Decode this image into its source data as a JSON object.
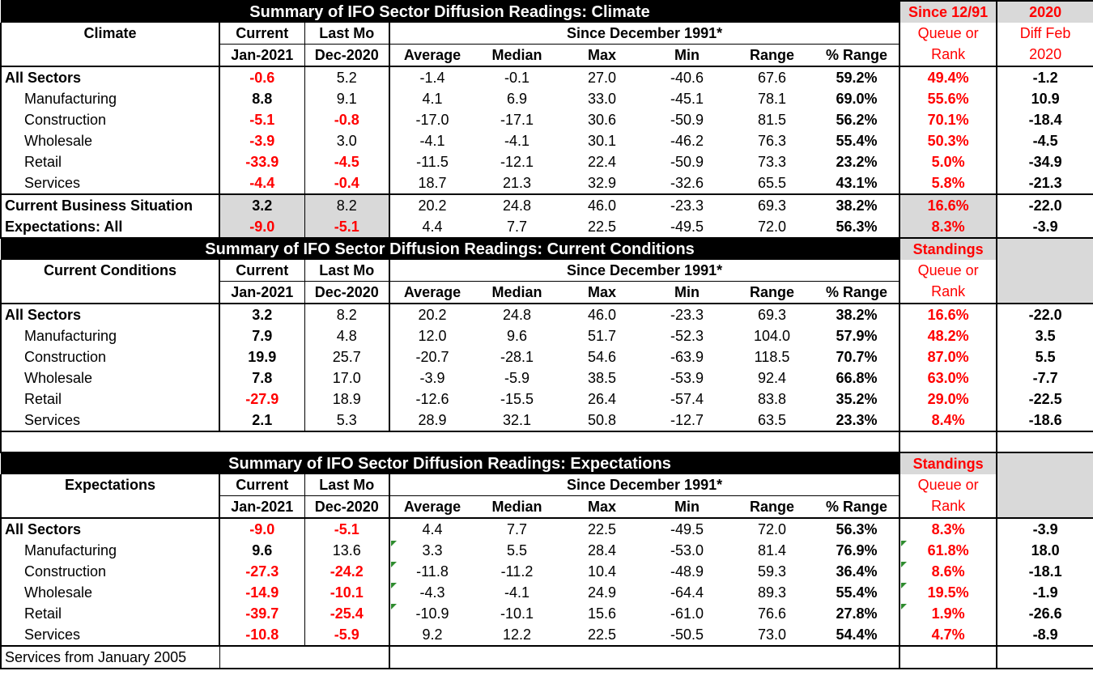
{
  "climate": {
    "title": "Summary of IFO Sector Diffusion Readings: Climate",
    "since_label": "Since 12/91",
    "year_label": "2020",
    "row_header": "Climate",
    "current_label": "Current",
    "lastmo_label": "Last Mo",
    "since_dec": "Since December 1991*",
    "queue_label": "Queue or",
    "rank_label": "Rank",
    "diff_label": "Diff Feb",
    "diff_year": "2020",
    "current_date": "Jan-2021",
    "lastmo_date": "Dec-2020",
    "col_average": "Average",
    "col_median": "Median",
    "col_max": "Max",
    "col_min": "Min",
    "col_range": "Range",
    "col_pctrange": "% Range",
    "rows": [
      {
        "name": "All Sectors",
        "current": "-0.6",
        "lastmo": "5.2",
        "average": "-1.4",
        "median": "-0.1",
        "max": "27.0",
        "min": "-40.6",
        "range": "67.6",
        "pct": "59.2%",
        "rank": "49.4%",
        "diff": "-1.2"
      },
      {
        "name": "Manufacturing",
        "current": "8.8",
        "lastmo": "9.1",
        "average": "4.1",
        "median": "6.9",
        "max": "33.0",
        "min": "-45.1",
        "range": "78.1",
        "pct": "69.0%",
        "rank": "55.6%",
        "diff": "10.9"
      },
      {
        "name": "Construction",
        "current": "-5.1",
        "lastmo": "-0.8",
        "average": "-17.0",
        "median": "-17.1",
        "max": "30.6",
        "min": "-50.9",
        "range": "81.5",
        "pct": "56.2%",
        "rank": "70.1%",
        "diff": "-18.4"
      },
      {
        "name": "Wholesale",
        "current": "-3.9",
        "lastmo": "3.0",
        "average": "-4.1",
        "median": "-4.1",
        "max": "30.1",
        "min": "-46.2",
        "range": "76.3",
        "pct": "55.4%",
        "rank": "50.3%",
        "diff": "-4.5"
      },
      {
        "name": "Retail",
        "current": "-33.9",
        "lastmo": "-4.5",
        "average": "-11.5",
        "median": "-12.1",
        "max": "22.4",
        "min": "-50.9",
        "range": "73.3",
        "pct": "23.2%",
        "rank": "5.0%",
        "diff": "-34.9"
      },
      {
        "name": "Services",
        "current": "-4.4",
        "lastmo": "-0.4",
        "average": "18.7",
        "median": "21.3",
        "max": "32.9",
        "min": "-32.6",
        "range": "65.5",
        "pct": "43.1%",
        "rank": "5.8%",
        "diff": "-21.3"
      },
      {
        "name": "Current Business Situation",
        "current": "3.2",
        "lastmo": "8.2",
        "average": "20.2",
        "median": "24.8",
        "max": "46.0",
        "min": "-23.3",
        "range": "69.3",
        "pct": "38.2%",
        "rank": "16.6%",
        "diff": "-22.0"
      },
      {
        "name": "Expectations: All",
        "current": "-9.0",
        "lastmo": "-5.1",
        "average": "4.4",
        "median": "7.7",
        "max": "22.5",
        "min": "-49.5",
        "range": "72.0",
        "pct": "56.3%",
        "rank": "8.3%",
        "diff": "-3.9"
      }
    ]
  },
  "conditions": {
    "title": "Summary of IFO Sector Diffusion Readings: Current Conditions",
    "standings_label": "Standings",
    "row_header": "Current Conditions",
    "current_label": "Current",
    "lastmo_label": "Last Mo",
    "since_dec": "Since December 1991*",
    "queue_label": "Queue or",
    "rank_label": "Rank",
    "current_date": "Jan-2021",
    "lastmo_date": "Dec-2020",
    "col_average": "Average",
    "col_median": "Median",
    "col_max": "Max",
    "col_min": "Min",
    "col_range": "Range",
    "col_pctrange": "% Range",
    "rows": [
      {
        "name": "All Sectors",
        "current": "3.2",
        "lastmo": "8.2",
        "average": "20.2",
        "median": "24.8",
        "max": "46.0",
        "min": "-23.3",
        "range": "69.3",
        "pct": "38.2%",
        "rank": "16.6%",
        "diff": "-22.0"
      },
      {
        "name": "Manufacturing",
        "current": "7.9",
        "lastmo": "4.8",
        "average": "12.0",
        "median": "9.6",
        "max": "51.7",
        "min": "-52.3",
        "range": "104.0",
        "pct": "57.9%",
        "rank": "48.2%",
        "diff": "3.5"
      },
      {
        "name": "Construction",
        "current": "19.9",
        "lastmo": "25.7",
        "average": "-20.7",
        "median": "-28.1",
        "max": "54.6",
        "min": "-63.9",
        "range": "118.5",
        "pct": "70.7%",
        "rank": "87.0%",
        "diff": "5.5"
      },
      {
        "name": "Wholesale",
        "current": "7.8",
        "lastmo": "17.0",
        "average": "-3.9",
        "median": "-5.9",
        "max": "38.5",
        "min": "-53.9",
        "range": "92.4",
        "pct": "66.8%",
        "rank": "63.0%",
        "diff": "-7.7"
      },
      {
        "name": "Retail",
        "current": "-27.9",
        "lastmo": "18.9",
        "average": "-12.6",
        "median": "-15.5",
        "max": "26.4",
        "min": "-57.4",
        "range": "83.8",
        "pct": "35.2%",
        "rank": "29.0%",
        "diff": "-22.5"
      },
      {
        "name": "Services",
        "current": "2.1",
        "lastmo": "5.3",
        "average": "28.9",
        "median": "32.1",
        "max": "50.8",
        "min": "-12.7",
        "range": "63.5",
        "pct": "23.3%",
        "rank": "8.4%",
        "diff": "-18.6"
      }
    ]
  },
  "expectations": {
    "title": "Summary of IFO Sector Diffusion Readings: Expectations",
    "standings_label": "Standings",
    "row_header": "Expectations",
    "current_label": "Current",
    "lastmo_label": "Last Mo",
    "since_dec": "Since December 1991*",
    "queue_label": "Queue or",
    "rank_label": "Rank",
    "current_date": "Jan-2021",
    "lastmo_date": "Dec-2020",
    "col_average": "Average",
    "col_median": "Median",
    "col_max": "Max",
    "col_min": "Min",
    "col_range": "Range",
    "col_pctrange": "% Range",
    "rows": [
      {
        "name": "All Sectors",
        "current": "-9.0",
        "lastmo": "-5.1",
        "average": "4.4",
        "median": "7.7",
        "max": "22.5",
        "min": "-49.5",
        "range": "72.0",
        "pct": "56.3%",
        "rank": "8.3%",
        "diff": "-3.9"
      },
      {
        "name": "Manufacturing",
        "current": "9.6",
        "lastmo": "13.6",
        "average": "3.3",
        "median": "5.5",
        "max": "28.4",
        "min": "-53.0",
        "range": "81.4",
        "pct": "76.9%",
        "rank": "61.8%",
        "diff": "18.0"
      },
      {
        "name": "Construction",
        "current": "-27.3",
        "lastmo": "-24.2",
        "average": "-11.8",
        "median": "-11.2",
        "max": "10.4",
        "min": "-48.9",
        "range": "59.3",
        "pct": "36.4%",
        "rank": "8.6%",
        "diff": "-18.1"
      },
      {
        "name": "Wholesale",
        "current": "-14.9",
        "lastmo": "-10.1",
        "average": "-4.3",
        "median": "-4.1",
        "max": "24.9",
        "min": "-64.4",
        "range": "89.3",
        "pct": "55.4%",
        "rank": "19.5%",
        "diff": "-1.9"
      },
      {
        "name": "Retail",
        "current": "-39.7",
        "lastmo": "-25.4",
        "average": "-10.9",
        "median": "-10.1",
        "max": "15.6",
        "min": "-61.0",
        "range": "76.6",
        "pct": "27.8%",
        "rank": "1.9%",
        "diff": "-26.6"
      },
      {
        "name": "Services",
        "current": "-10.8",
        "lastmo": "-5.9",
        "average": "9.2",
        "median": "12.2",
        "max": "22.5",
        "min": "-50.5",
        "range": "73.0",
        "pct": "54.4%",
        "rank": "4.7%",
        "diff": "-8.9"
      }
    ]
  },
  "footnote": "Services from January 2005",
  "colors": {
    "negative_red": "#ff0000",
    "header_bg": "#000000",
    "standings_bg": "#d9d9d9",
    "marker_green": "#2e8b2e"
  }
}
